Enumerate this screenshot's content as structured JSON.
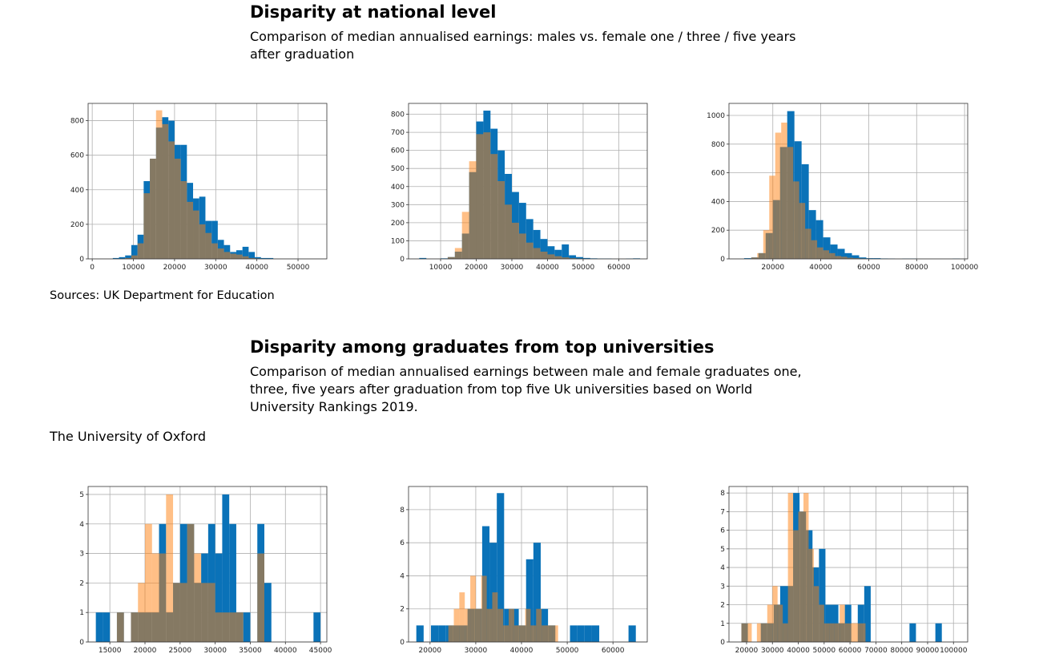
{
  "sections": [
    {
      "title": "Disparity at national level",
      "subtitle": "Comparison of median annualised earnings: males vs. female one / three / five years after graduation"
    },
    {
      "title": "Disparity among graduates from top universities",
      "subtitle": "Comparison of median annualised earnings between male and female graduates one, three, five years after graduation from top five Uk universities based on World University Rankings 2019."
    }
  ],
  "source": "Sources: UK Department for Education",
  "subsection": "The University of Oxford",
  "chart_data": [
    {
      "type": "histogram",
      "grid": true,
      "xlim": [
        -1000,
        57000
      ],
      "ylim": [
        0,
        900
      ],
      "xticks": [
        0,
        10000,
        20000,
        30000,
        40000,
        50000
      ],
      "yticks": [
        0,
        200,
        400,
        600,
        800
      ],
      "series": [
        {
          "color": "#0a72b8",
          "alpha": 1,
          "bins": [
            5000,
            6500,
            8000,
            9500,
            11000,
            12500,
            14000,
            15500,
            17000,
            18500,
            20000,
            21500,
            23000,
            24500,
            26000,
            27500,
            29000,
            30500,
            32000,
            33500,
            35000,
            36500,
            38000,
            39500,
            41000,
            42500,
            44000
          ],
          "values": [
            5,
            10,
            20,
            80,
            140,
            450,
            580,
            760,
            820,
            800,
            660,
            660,
            440,
            350,
            360,
            220,
            220,
            110,
            80,
            40,
            50,
            70,
            40,
            10,
            5,
            5
          ]
        },
        {
          "color": "#ff7f0e",
          "alpha": 0.5,
          "bins": [
            8000,
            9500,
            11000,
            12500,
            14000,
            15500,
            17000,
            18500,
            20000,
            21500,
            23000,
            24500,
            26000,
            27500,
            29000,
            30500,
            32000,
            33500,
            35000,
            36500,
            38000,
            39500,
            41000
          ],
          "values": [
            5,
            20,
            90,
            380,
            580,
            860,
            780,
            680,
            580,
            450,
            330,
            280,
            200,
            150,
            90,
            60,
            40,
            30,
            25,
            15,
            5,
            3
          ]
        }
      ]
    },
    {
      "type": "histogram",
      "grid": true,
      "xlim": [
        1000,
        68000
      ],
      "ylim": [
        0,
        860
      ],
      "xticks": [
        10000,
        20000,
        30000,
        40000,
        50000,
        60000
      ],
      "yticks": [
        0,
        100,
        200,
        300,
        400,
        500,
        600,
        700,
        800
      ],
      "series": [
        {
          "color": "#0a72b8",
          "alpha": 1,
          "bins": [
            4000,
            6000,
            8000,
            10000,
            12000,
            14000,
            16000,
            18000,
            20000,
            22000,
            24000,
            26000,
            28000,
            30000,
            32000,
            34000,
            36000,
            38000,
            40000,
            42000,
            44000,
            46000,
            48000,
            50000,
            52000,
            54000,
            56000,
            58000,
            60000,
            62000,
            64000,
            66000
          ],
          "values": [
            5,
            0,
            0,
            3,
            10,
            40,
            140,
            480,
            760,
            820,
            720,
            600,
            470,
            370,
            310,
            220,
            160,
            110,
            70,
            50,
            80,
            20,
            10,
            5,
            3,
            2,
            2,
            0,
            0,
            2,
            3
          ]
        },
        {
          "color": "#ff7f0e",
          "alpha": 0.5,
          "bins": [
            12000,
            14000,
            16000,
            18000,
            20000,
            22000,
            24000,
            26000,
            28000,
            30000,
            32000,
            34000,
            36000,
            38000,
            40000,
            42000,
            44000,
            46000,
            48000,
            50000
          ],
          "values": [
            10,
            60,
            260,
            540,
            690,
            700,
            580,
            430,
            300,
            200,
            140,
            90,
            60,
            40,
            25,
            15,
            8,
            4,
            2
          ]
        }
      ]
    },
    {
      "type": "histogram",
      "grid": true,
      "xlim": [
        1700,
        101300
      ],
      "ylim": [
        0,
        1084
      ],
      "xticks": [
        20000,
        40000,
        60000,
        80000,
        100000
      ],
      "yticks": [
        0,
        200,
        400,
        600,
        800,
        1000
      ],
      "series": [
        {
          "color": "#0a72b8",
          "alpha": 1,
          "bins": [
            8000,
            11000,
            14000,
            17000,
            20000,
            23000,
            26000,
            29000,
            32000,
            35000,
            38000,
            41000,
            44000,
            47000,
            50000,
            53000,
            56000,
            59000,
            62000,
            65000,
            68000,
            71000,
            74000,
            77000,
            80000,
            83000,
            86000,
            89000,
            92000,
            95000,
            98000
          ],
          "values": [
            5,
            10,
            40,
            180,
            410,
            780,
            1030,
            820,
            660,
            340,
            270,
            150,
            100,
            70,
            40,
            25,
            10,
            5,
            5,
            3,
            2,
            0,
            2,
            2,
            0,
            0,
            0,
            0,
            0,
            2
          ]
        },
        {
          "color": "#ff7f0e",
          "alpha": 0.5,
          "bins": [
            11000,
            13500,
            16000,
            18500,
            21000,
            23500,
            26000,
            28500,
            31000,
            33500,
            36000,
            38500,
            41000,
            43500,
            46000,
            48500,
            51000,
            53500,
            56000,
            58500,
            61000
          ],
          "values": [
            10,
            40,
            200,
            580,
            880,
            950,
            780,
            540,
            390,
            210,
            130,
            80,
            60,
            40,
            20,
            15,
            8,
            5,
            3,
            2
          ]
        }
      ]
    },
    {
      "type": "histogram",
      "grid": true,
      "xlim": [
        11900,
        45900
      ],
      "ylim": [
        0,
        5.27
      ],
      "xticks": [
        15000,
        20000,
        25000,
        30000,
        35000,
        40000,
        45000
      ],
      "yticks": [
        0,
        1,
        2,
        3,
        4,
        5
      ],
      "series": [
        {
          "color": "#0a72b8",
          "alpha": 1,
          "bins": [
            13000,
            14000,
            15000,
            16000,
            17000,
            18000,
            19000,
            20000,
            21000,
            22000,
            23000,
            24000,
            25000,
            26000,
            27000,
            28000,
            29000,
            30000,
            31000,
            32000,
            33000,
            34000,
            35000,
            36000,
            37000,
            38000,
            39000,
            40000,
            41000,
            42000,
            43000,
            44000,
            45000
          ],
          "values": [
            1,
            1,
            0,
            1,
            0,
            1,
            1,
            1,
            1,
            4,
            1,
            2,
            4,
            4,
            2,
            3,
            4,
            3,
            5,
            4,
            1,
            1,
            0,
            4,
            2,
            0,
            0,
            0,
            0,
            0,
            0,
            1
          ]
        },
        {
          "color": "#ff7f0e",
          "alpha": 0.5,
          "bins": [
            15000,
            16000,
            17000,
            18000,
            19000,
            20000,
            21000,
            22000,
            23000,
            24000,
            25000,
            26000,
            27000,
            28000,
            29000,
            30000,
            31000,
            32000,
            33000,
            34000,
            35000,
            36000,
            37000
          ],
          "values": [
            0,
            1,
            0,
            1,
            2,
            4,
            3,
            3,
            5,
            2,
            2,
            4,
            3,
            2,
            2,
            1,
            1,
            1,
            1,
            0,
            0,
            3
          ]
        }
      ]
    },
    {
      "type": "histogram",
      "grid": true,
      "xlim": [
        15300,
        67500
      ],
      "ylim": [
        0,
        9.4
      ],
      "xticks": [
        20000,
        30000,
        40000,
        50000,
        60000
      ],
      "yticks": [
        0,
        2,
        4,
        6,
        8
      ],
      "series": [
        {
          "color": "#0a72b8",
          "alpha": 1,
          "bins": [
            17000,
            18600,
            20200,
            21800,
            23400,
            25000,
            26600,
            28200,
            29800,
            31400,
            33000,
            34600,
            36200,
            37800,
            39400,
            41000,
            42600,
            44200,
            45800,
            47400,
            49000,
            50600,
            52200,
            53800,
            55400,
            57000,
            58600,
            60200,
            61800,
            63400,
            65000
          ],
          "values": [
            1,
            0,
            1,
            1,
            1,
            1,
            1,
            2,
            2,
            7,
            6,
            9,
            2,
            2,
            1,
            5,
            6,
            2,
            1,
            0,
            0,
            1,
            1,
            1,
            1,
            0,
            0,
            0,
            0,
            1
          ]
        },
        {
          "color": "#ff7f0e",
          "alpha": 0.5,
          "bins": [
            24000,
            25200,
            26400,
            27600,
            28800,
            30000,
            31200,
            32400,
            33600,
            34800,
            36000,
            37200,
            38400,
            39600,
            40800,
            42000,
            43200,
            44400,
            45600,
            46800,
            48000
          ],
          "values": [
            1,
            2,
            3,
            2,
            4,
            2,
            4,
            2,
            3,
            2,
            1,
            2,
            1,
            1,
            2,
            1,
            2,
            1,
            1,
            1
          ]
        }
      ]
    },
    {
      "type": "histogram",
      "grid": true,
      "xlim": [
        13200,
        105500
      ],
      "ylim": [
        0,
        8.35
      ],
      "xticks": [
        20000,
        30000,
        40000,
        50000,
        60000,
        70000,
        80000,
        90000,
        100000
      ],
      "yticks": [
        0,
        1,
        2,
        3,
        4,
        5,
        6,
        7,
        8
      ],
      "series": [
        {
          "color": "#0a72b8",
          "alpha": 1,
          "bins": [
            18000,
            20500,
            23000,
            25500,
            28000,
            30500,
            33000,
            35500,
            38000,
            40500,
            43000,
            45500,
            48000,
            50500,
            53000,
            55500,
            58000,
            60500,
            63000,
            65500,
            68000,
            70500,
            73000,
            75500,
            78000,
            80500,
            83000,
            85500,
            88000,
            90500,
            93000,
            95500,
            98000
          ],
          "values": [
            1,
            0,
            0,
            1,
            1,
            2,
            3,
            3,
            8,
            7,
            6,
            4,
            5,
            2,
            2,
            1,
            2,
            0,
            2,
            3,
            0,
            0,
            0,
            0,
            0,
            0,
            1,
            0,
            0,
            0,
            1,
            0
          ]
        },
        {
          "color": "#ff7f0e",
          "alpha": 0.5,
          "bins": [
            18000,
            20000,
            22000,
            24000,
            26000,
            28000,
            30000,
            32000,
            34000,
            36000,
            38000,
            40000,
            42000,
            44000,
            46000,
            48000,
            50000,
            52000,
            54000,
            56000,
            58000,
            60000,
            62000,
            64000,
            66000
          ],
          "values": [
            1,
            1,
            0,
            1,
            1,
            2,
            3,
            2,
            1,
            8,
            6,
            7,
            8,
            5,
            3,
            2,
            1,
            1,
            1,
            2,
            1,
            1,
            1,
            1
          ]
        }
      ]
    }
  ]
}
